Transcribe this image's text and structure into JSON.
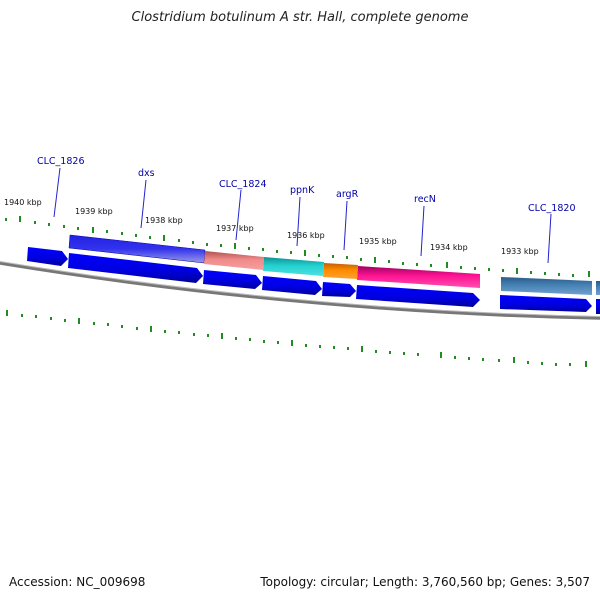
{
  "title": "Clostridium botulinum A str. Hall, complete genome",
  "footer": {
    "accession": "Accession: NC_009698",
    "topology": "Topology: circular; Length: 3,760,560 bp; Genes: 3,507"
  },
  "kbp_ticks": [
    "1940 kbp",
    "1939 kbp",
    "1938 kbp",
    "1937 kbp",
    "1936 kbp",
    "1935 kbp",
    "1934 kbp",
    "1933 kbp"
  ],
  "gene_labels": [
    "CLC_1826",
    "dxs",
    "CLC_1824",
    "ppnK",
    "argR",
    "recN",
    "CLC_1820"
  ],
  "colors": {
    "cds_blue": "#0000ee",
    "dxs": "#5a5ad8",
    "clc_1824": "#e88080",
    "ppnK": "#20c8c8",
    "argR": "#ff8c00",
    "recN": "#ff1493",
    "clc_1820": "#4682b4",
    "backbone": "#777777",
    "tick_green": "#228b22"
  }
}
